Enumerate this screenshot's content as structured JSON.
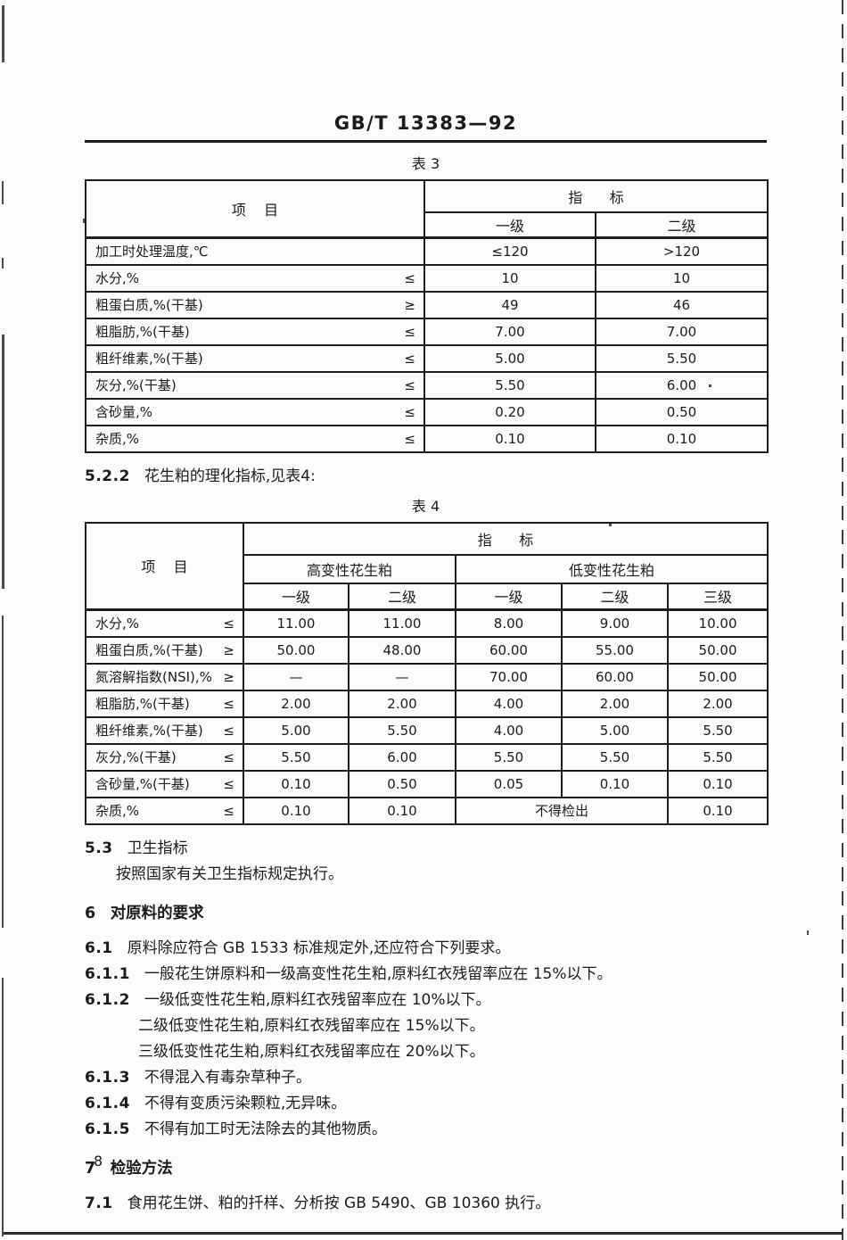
{
  "colors": {
    "ink": "#1b1b1b",
    "paper": "#fcfcfa",
    "border": "#1d1d1d"
  },
  "doc": {
    "standard_code": "GB/T 13383—92",
    "page_number": "8"
  },
  "paragraph_5_2_2": {
    "num": "5.2.2",
    "text": "花生粕的理化指标,见表4:"
  },
  "table3": {
    "caption": "表 3",
    "header": {
      "item": "项    目",
      "indicator": "指      标",
      "grades": [
        "一级",
        "二级"
      ]
    },
    "rows": [
      {
        "item": "加工时处理温度,℃",
        "symbol": "",
        "cells": [
          {
            "text": "≤120"
          },
          {
            "text": ">120"
          }
        ]
      },
      {
        "item": "水分,%",
        "symbol": "≤",
        "cells": [
          {
            "text": "10"
          },
          {
            "text": "10"
          }
        ]
      },
      {
        "item": "粗蛋白质,%(干基)",
        "symbol": "≥",
        "cells": [
          {
            "text": "49"
          },
          {
            "text": "46"
          }
        ]
      },
      {
        "item": "粗脂肪,%(干基)",
        "symbol": "≤",
        "cells": [
          {
            "text": "7.00"
          },
          {
            "text": "7.00"
          }
        ]
      },
      {
        "item": "粗纤维素,%(干基)",
        "symbol": "≤",
        "cells": [
          {
            "text": "5.00"
          },
          {
            "text": "5.50"
          }
        ]
      },
      {
        "item": "灰分,%(干基)",
        "symbol": "≤",
        "cells": [
          {
            "text": "5.50"
          },
          {
            "text": "6.00"
          }
        ]
      },
      {
        "item": "含砂量,%",
        "symbol": "≤",
        "cells": [
          {
            "text": "0.20"
          },
          {
            "text": "0.50"
          }
        ]
      },
      {
        "item": "杂质,%",
        "symbol": "≤",
        "cells": [
          {
            "text": "0.10"
          },
          {
            "text": "0.10"
          }
        ]
      }
    ]
  },
  "table4": {
    "caption": "表 4",
    "header": {
      "item": "项    目",
      "indicator": "指      标",
      "groups": [
        {
          "label": "高变性花生粕",
          "span": 2
        },
        {
          "label": "低变性花生粕",
          "span": 3
        }
      ],
      "grades": [
        "一级",
        "二级",
        "一级",
        "二级",
        "三级"
      ]
    },
    "rows": [
      {
        "item": "水分,%",
        "symbol": "≤",
        "cells": [
          {
            "text": "11.00"
          },
          {
            "text": "11.00"
          },
          {
            "text": "8.00"
          },
          {
            "text": "9.00"
          },
          {
            "text": "10.00"
          }
        ]
      },
      {
        "item": "粗蛋白质,%(干基)",
        "symbol": "≥",
        "cells": [
          {
            "text": "50.00"
          },
          {
            "text": "48.00"
          },
          {
            "text": "60.00"
          },
          {
            "text": "55.00"
          },
          {
            "text": "50.00"
          }
        ]
      },
      {
        "item": "氮溶解指数(NSI),%",
        "symbol": "≥",
        "cells": [
          {
            "text": "—"
          },
          {
            "text": "—"
          },
          {
            "text": "70.00"
          },
          {
            "text": "60.00"
          },
          {
            "text": "50.00"
          }
        ]
      },
      {
        "item": "粗脂肪,%(干基)",
        "symbol": "≤",
        "cells": [
          {
            "text": "2.00"
          },
          {
            "text": "2.00"
          },
          {
            "text": "4.00"
          },
          {
            "text": "2.00"
          },
          {
            "text": "2.00"
          }
        ]
      },
      {
        "item": "粗纤维素,%(干基)",
        "symbol": "≤",
        "cells": [
          {
            "text": "5.00"
          },
          {
            "text": "5.50"
          },
          {
            "text": "4.00"
          },
          {
            "text": "5.00"
          },
          {
            "text": "5.50"
          }
        ]
      },
      {
        "item": "灰分,%(干基)",
        "symbol": "≤",
        "cells": [
          {
            "text": "5.50"
          },
          {
            "text": "6.00"
          },
          {
            "text": "5.50"
          },
          {
            "text": "5.50"
          },
          {
            "text": "5.50"
          }
        ]
      },
      {
        "item": "含砂量,%(干基)",
        "symbol": "≤",
        "cells": [
          {
            "text": "0.10"
          },
          {
            "text": "0.50"
          },
          {
            "text": "0.05"
          },
          {
            "text": "0.10"
          },
          {
            "text": "0.10"
          }
        ]
      },
      {
        "item": "杂质,%",
        "symbol": "≤",
        "cells": [
          {
            "text": "0.10"
          },
          {
            "text": "0.10"
          },
          {
            "text": "不得检出",
            "span": 2
          },
          {
            "text": "0.10"
          }
        ]
      }
    ]
  },
  "sections": [
    {
      "type": "line",
      "name": "clause-5-3-heading",
      "num": "5.3",
      "text": "卫生指标"
    },
    {
      "type": "indent",
      "name": "clause-5-3-body",
      "text": "按照国家有关卫生指标规定执行。"
    },
    {
      "type": "chapter",
      "name": "chapter-6-heading",
      "num": "6",
      "text": "对原料的要求"
    },
    {
      "type": "line",
      "name": "clause-6-1",
      "num": "6.1",
      "text": "原料除应符合 GB 1533 标准规定外,还应符合下列要求。"
    },
    {
      "type": "line",
      "name": "clause-6-1-1",
      "num": "6.1.1",
      "text": "一般花生饼原料和一级高变性花生粕,原料红衣残留率应在 15%以下。"
    },
    {
      "type": "line",
      "name": "clause-6-1-2",
      "num": "6.1.2",
      "text": "一级低变性花生粕,原料红衣残留率应在 10%以下。"
    },
    {
      "type": "cont",
      "name": "clause-6-1-2-cont",
      "text": "二级低变性花生粕,原料红衣残留率应在 15%以下。"
    },
    {
      "type": "cont",
      "name": "clause-6-1-2-cont",
      "text": "三级低变性花生粕,原料红衣残留率应在 20%以下。"
    },
    {
      "type": "line",
      "name": "clause-6-1-3",
      "num": "6.1.3",
      "text": "不得混入有毒杂草种子。"
    },
    {
      "type": "line",
      "name": "clause-6-1-4",
      "num": "6.1.4",
      "text": "不得有变质污染颗粒,无异味。"
    },
    {
      "type": "line",
      "name": "clause-6-1-5",
      "num": "6.1.5",
      "text": "不得有加工时无法除去的其他物质。"
    },
    {
      "type": "chapter",
      "name": "chapter-7-heading",
      "num": "7",
      "text": "检验方法"
    },
    {
      "type": "line",
      "name": "clause-7-1",
      "num": "7.1",
      "text": "食用花生饼、粕的扦样、分析按 GB 5490、GB 10360 执行。"
    }
  ]
}
